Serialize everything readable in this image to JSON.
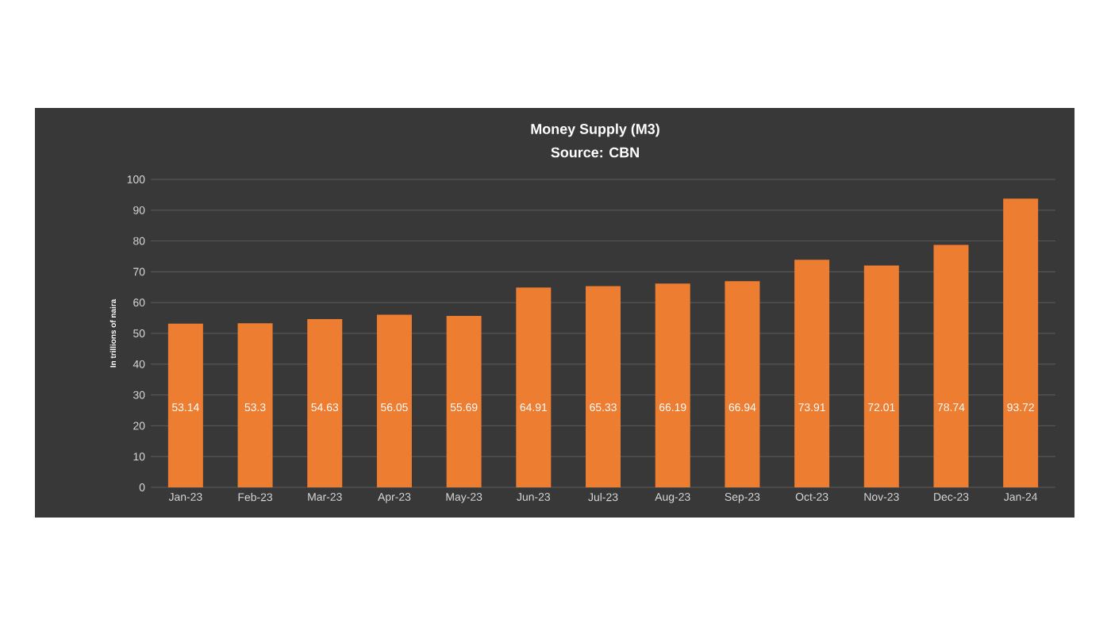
{
  "chart_data": {
    "type": "bar",
    "title": "Money Supply (M3)",
    "subtitle": "Source: CBN",
    "ylabel": "In trillions of naira",
    "categories": [
      "Jan-23",
      "Feb-23",
      "Mar-23",
      "Apr-23",
      "May-23",
      "Jun-23",
      "Jul-23",
      "Aug-23",
      "Sep-23",
      "Oct-23",
      "Nov-23",
      "Dec-23",
      "Jan-24"
    ],
    "values": [
      53.14,
      53.3,
      54.63,
      56.05,
      55.69,
      64.91,
      65.33,
      66.19,
      66.94,
      73.91,
      72.01,
      78.74,
      93.72
    ],
    "color": "#ed7d31",
    "ylim": [
      0,
      100
    ],
    "yticks": [
      0,
      10,
      20,
      30,
      40,
      50,
      60,
      70,
      80,
      90,
      100
    ],
    "grid": "y",
    "data_labels": true
  }
}
